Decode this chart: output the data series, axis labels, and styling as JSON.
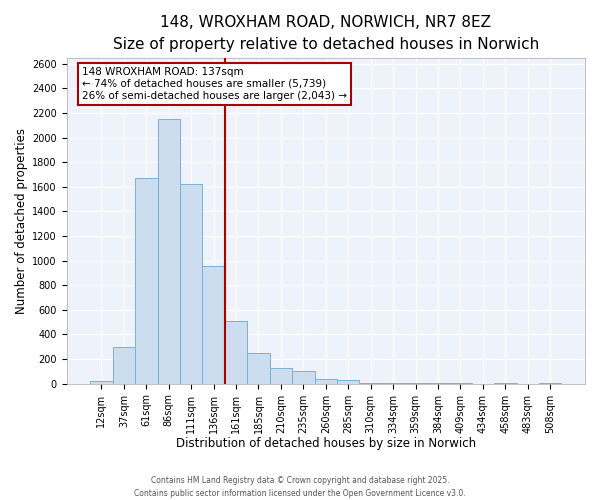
{
  "title": "148, WROXHAM ROAD, NORWICH, NR7 8EZ",
  "subtitle": "Size of property relative to detached houses in Norwich",
  "xlabel": "Distribution of detached houses by size in Norwich",
  "ylabel": "Number of detached properties",
  "bar_labels": [
    "12sqm",
    "37sqm",
    "61sqm",
    "86sqm",
    "111sqm",
    "136sqm",
    "161sqm",
    "185sqm",
    "210sqm",
    "235sqm",
    "260sqm",
    "285sqm",
    "310sqm",
    "334sqm",
    "359sqm",
    "384sqm",
    "409sqm",
    "434sqm",
    "458sqm",
    "483sqm",
    "508sqm"
  ],
  "bar_values": [
    20,
    300,
    1670,
    2150,
    1620,
    960,
    510,
    250,
    130,
    100,
    35,
    30,
    5,
    5,
    5,
    3,
    2,
    0,
    2,
    0,
    2
  ],
  "bar_color": "#ccddf0",
  "bar_edge_color": "#7ab0d8",
  "vline_x": 5.5,
  "vline_color": "#aa0000",
  "annotation_title": "148 WROXHAM ROAD: 137sqm",
  "annotation_line1": "← 74% of detached houses are smaller (5,739)",
  "annotation_line2": "26% of semi-detached houses are larger (2,043) →",
  "annotation_box_edgecolor": "#aa0000",
  "ylim": [
    0,
    2650
  ],
  "yticks": [
    0,
    200,
    400,
    600,
    800,
    1000,
    1200,
    1400,
    1600,
    1800,
    2000,
    2200,
    2400,
    2600
  ],
  "bg_color": "#eef2fa",
  "footer1": "Contains HM Land Registry data © Crown copyright and database right 2025.",
  "footer2": "Contains public sector information licensed under the Open Government Licence v3.0.",
  "title_fontsize": 11,
  "subtitle_fontsize": 9.5,
  "tick_fontsize": 7,
  "axis_label_fontsize": 8.5
}
